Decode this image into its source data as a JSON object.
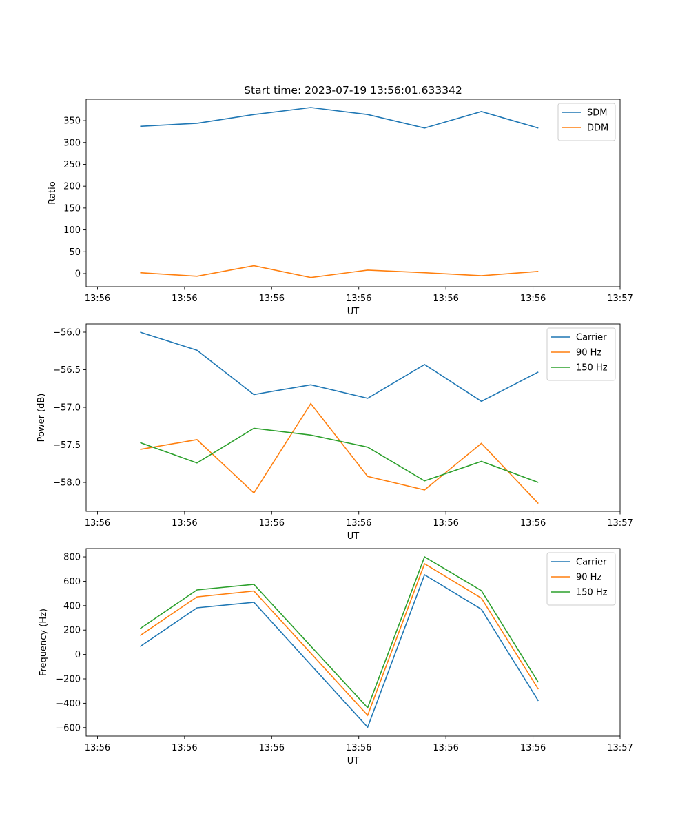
{
  "chart_data": [
    {
      "type": "line",
      "title": "Start time: 2023-07-19 13:56:01.633342",
      "xlabel": "UT",
      "ylabel": "Ratio",
      "xlim": [
        -0.13,
        6.0
      ],
      "ylim": [
        -30,
        399
      ],
      "xticks": [
        0,
        1,
        2,
        3,
        4,
        5,
        6
      ],
      "xtick_labels": [
        "13:56",
        "13:56",
        "13:56",
        "13:56",
        "13:56",
        "13:56",
        "13:57"
      ],
      "yticks": [
        0,
        50,
        100,
        150,
        200,
        250,
        300,
        350
      ],
      "ytick_labels": [
        "0",
        "50",
        "100",
        "150",
        "200",
        "250",
        "300",
        "350"
      ],
      "x": [
        0.49,
        1.143,
        1.796,
        2.449,
        3.102,
        3.755,
        4.408,
        5.061
      ],
      "legend": "top-right",
      "series": [
        {
          "name": "SDM",
          "color": "#1f77b4",
          "values": [
            337,
            344,
            364,
            380,
            364,
            333,
            371,
            333
          ]
        },
        {
          "name": "DDM",
          "color": "#ff7f0e",
          "values": [
            2,
            -6,
            18,
            -9,
            8,
            2,
            -5,
            5
          ]
        }
      ]
    },
    {
      "type": "line",
      "title": "",
      "xlabel": "UT",
      "ylabel": "Power (dB)",
      "xlim": [
        -0.13,
        6.0
      ],
      "ylim": [
        -58.385,
        -55.89
      ],
      "xticks": [
        0,
        1,
        2,
        3,
        4,
        5,
        6
      ],
      "xtick_labels": [
        "13:56",
        "13:56",
        "13:56",
        "13:56",
        "13:56",
        "13:56",
        "13:57"
      ],
      "yticks": [
        -58.0,
        -57.5,
        -57.0,
        -56.5,
        -56.0
      ],
      "ytick_labels": [
        "−58.0",
        "−57.5",
        "−57.0",
        "−56.5",
        "−56.0"
      ],
      "x": [
        0.49,
        1.143,
        1.796,
        2.449,
        3.102,
        3.755,
        4.408,
        5.061
      ],
      "legend": "top-right",
      "series": [
        {
          "name": "Carrier",
          "color": "#1f77b4",
          "values": [
            -56.0,
            -56.24,
            -56.83,
            -56.7,
            -56.88,
            -56.43,
            -56.92,
            -56.53
          ]
        },
        {
          "name": "90 Hz",
          "color": "#ff7f0e",
          "values": [
            -57.56,
            -57.43,
            -58.14,
            -56.95,
            -57.92,
            -58.1,
            -57.48,
            -58.28
          ]
        },
        {
          "name": "150 Hz",
          "color": "#2ca02c",
          "values": [
            -57.47,
            -57.74,
            -57.28,
            -57.37,
            -57.53,
            -57.98,
            -57.72,
            -58.0
          ]
        }
      ]
    },
    {
      "type": "line",
      "title": "",
      "xlabel": "UT",
      "ylabel": "Frequency (Hz)",
      "xlim": [
        -0.13,
        6.0
      ],
      "ylim": [
        -669,
        868
      ],
      "xticks": [
        0,
        1,
        2,
        3,
        4,
        5,
        6
      ],
      "xtick_labels": [
        "13:56",
        "13:56",
        "13:56",
        "13:56",
        "13:56",
        "13:56",
        "13:57"
      ],
      "yticks": [
        -600,
        -400,
        -200,
        0,
        200,
        400,
        600,
        800
      ],
      "ytick_labels": [
        "−600",
        "−400",
        "−200",
        "0",
        "200",
        "400",
        "600",
        "800"
      ],
      "x": [
        0.49,
        1.143,
        1.796,
        2.449,
        3.102,
        3.755,
        4.408,
        5.061
      ],
      "legend": "top-right",
      "series": [
        {
          "name": "Carrier",
          "color": "#1f77b4",
          "values": [
            65,
            382,
            427,
            -85,
            -596,
            653,
            370,
            -380
          ]
        },
        {
          "name": "90 Hz",
          "color": "#ff7f0e",
          "values": [
            155,
            472,
            520,
            10,
            -499,
            743,
            461,
            -285
          ]
        },
        {
          "name": "150 Hz",
          "color": "#2ca02c",
          "values": [
            212,
            529,
            574,
            68,
            -437,
            800,
            523,
            -228
          ]
        }
      ]
    }
  ]
}
